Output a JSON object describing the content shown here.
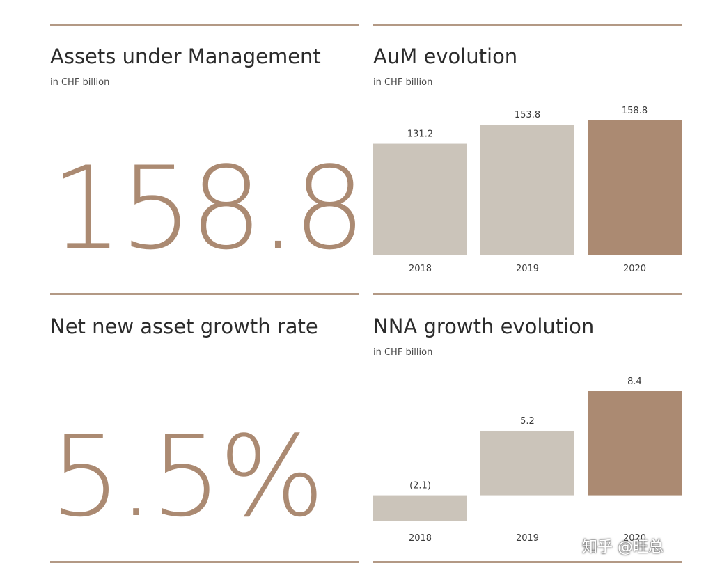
{
  "panels": {
    "aum": {
      "title": "Assets under Management",
      "subtitle": "in CHF billion",
      "value": "158.8"
    },
    "nna": {
      "title": "Net new asset growth rate",
      "value": "5.5%"
    }
  },
  "colors": {
    "accent": "#ab8a72",
    "muted_bar": "#cbc4ba",
    "rule": "#b39985"
  },
  "chart_data": [
    {
      "type": "bar",
      "title": "AuM evolution",
      "subtitle": "in CHF billion",
      "categories": [
        "2018",
        "2019",
        "2020"
      ],
      "values": [
        131.2,
        153.8,
        158.8
      ],
      "labels": [
        "131.2",
        "153.8",
        "158.8"
      ],
      "highlight_index": 2,
      "ylim": [
        0,
        158.8
      ],
      "grid": false
    },
    {
      "type": "bar",
      "title": "NNA growth evolution",
      "subtitle": "in CHF billion",
      "categories": [
        "2018",
        "2019",
        "2020"
      ],
      "values": [
        -2.1,
        5.2,
        8.4
      ],
      "labels": [
        "(2.1)",
        "5.2",
        "8.4"
      ],
      "highlight_index": 2,
      "ylim": [
        -2.1,
        8.4
      ],
      "grid": false
    }
  ],
  "watermark": "知乎 @旺总"
}
